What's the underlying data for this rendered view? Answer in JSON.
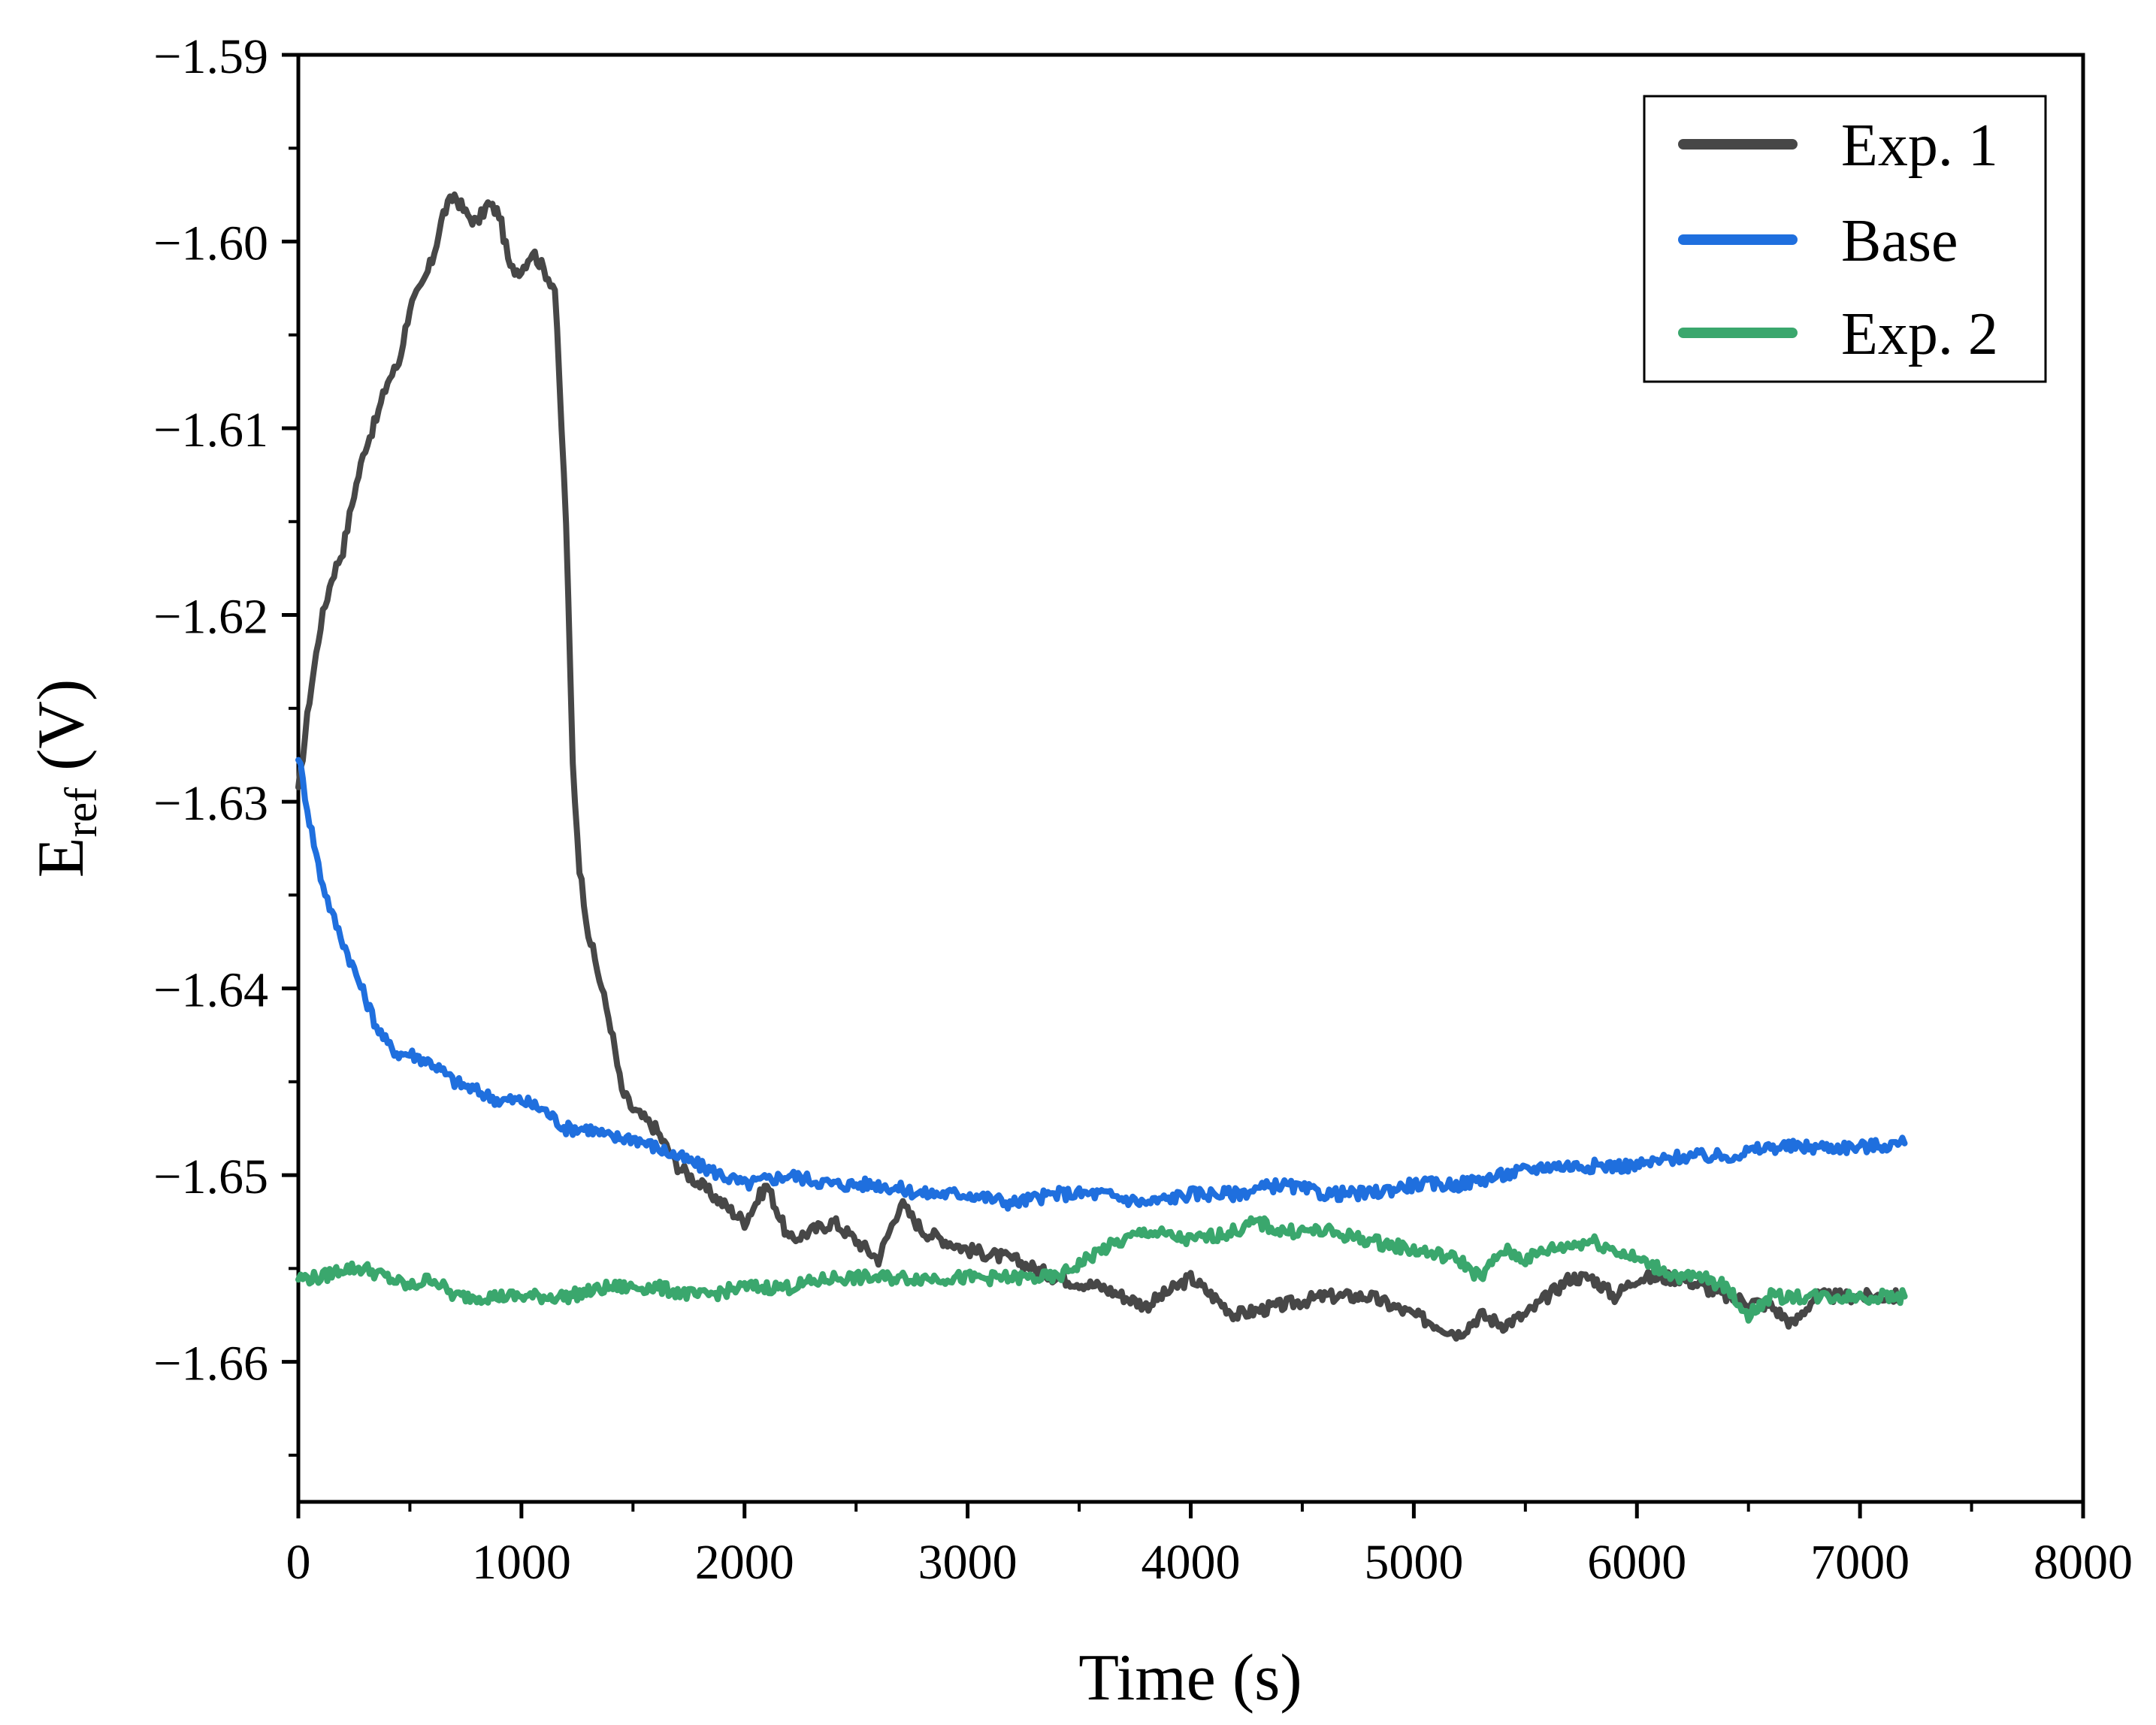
{
  "chart_data": {
    "type": "line",
    "title": "",
    "xlabel": "Time (s)",
    "ylabel_main": "E",
    "ylabel_sub": "ref",
    "ylabel_unit": " (V)",
    "xlim": [
      0,
      8000
    ],
    "ylim": [
      -1.6675,
      -1.59
    ],
    "x_ticks": [
      0,
      1000,
      2000,
      3000,
      4000,
      5000,
      6000,
      7000,
      8000
    ],
    "x_tick_labels": [
      "0",
      "1000",
      "2000",
      "3000",
      "4000",
      "5000",
      "6000",
      "7000",
      "8000"
    ],
    "y_ticks": [
      -1.59,
      -1.6,
      -1.61,
      -1.62,
      -1.63,
      -1.64,
      -1.65,
      -1.66
    ],
    "y_tick_labels": [
      "−1.59",
      "−1.60",
      "−1.61",
      "−1.62",
      "−1.63",
      "−1.64",
      "−1.65",
      "−1.66"
    ],
    "grid": false,
    "legend_position": "top-right",
    "series": [
      {
        "name": "Exp. 1",
        "color": "#474747",
        "x": [
          0,
          50,
          100,
          150,
          200,
          250,
          300,
          350,
          400,
          450,
          500,
          550,
          600,
          650,
          700,
          750,
          800,
          850,
          900,
          950,
          1000,
          1050,
          1100,
          1150,
          1200,
          1230,
          1260,
          1300,
          1350,
          1400,
          1450,
          1500,
          1600,
          1700,
          1800,
          1900,
          2000,
          2100,
          2200,
          2300,
          2400,
          2500,
          2600,
          2700,
          2800,
          2900,
          3000,
          3200,
          3400,
          3600,
          3800,
          4000,
          4200,
          4400,
          4600,
          4800,
          5000,
          5100,
          5200,
          5300,
          5400,
          5500,
          5600,
          5700,
          5800,
          5900,
          6000,
          6200,
          6400,
          6600,
          6700,
          6800,
          7000,
          7200
        ],
        "y": [
          -1.6295,
          -1.6245,
          -1.6205,
          -1.618,
          -1.6165,
          -1.6135,
          -1.611,
          -1.6095,
          -1.6075,
          -1.6065,
          -1.6035,
          -1.6025,
          -1.601,
          -1.5985,
          -1.5975,
          -1.5985,
          -1.599,
          -1.598,
          -1.5985,
          -1.6015,
          -1.6015,
          -1.6005,
          -1.6015,
          -1.6025,
          -1.615,
          -1.628,
          -1.6335,
          -1.637,
          -1.6395,
          -1.642,
          -1.6455,
          -1.6465,
          -1.6475,
          -1.6495,
          -1.6505,
          -1.6515,
          -1.6525,
          -1.6505,
          -1.6535,
          -1.653,
          -1.6525,
          -1.6535,
          -1.6545,
          -1.6515,
          -1.653,
          -1.6535,
          -1.654,
          -1.6545,
          -1.6555,
          -1.656,
          -1.657,
          -1.6555,
          -1.6575,
          -1.657,
          -1.6565,
          -1.6565,
          -1.6575,
          -1.658,
          -1.6585,
          -1.6575,
          -1.658,
          -1.6575,
          -1.6565,
          -1.6555,
          -1.6555,
          -1.6565,
          -1.6555,
          -1.6555,
          -1.6565,
          -1.657,
          -1.658,
          -1.6565,
          -1.6565,
          -1.6565
        ]
      },
      {
        "name": "Base",
        "color": "#1f6fde",
        "x": [
          0,
          50,
          100,
          150,
          200,
          250,
          300,
          350,
          400,
          450,
          500,
          600,
          700,
          800,
          900,
          1000,
          1100,
          1200,
          1300,
          1400,
          1500,
          1600,
          1700,
          1800,
          1900,
          2000,
          2200,
          2400,
          2600,
          2800,
          3000,
          3200,
          3400,
          3600,
          3800,
          4000,
          4200,
          4400,
          4600,
          4800,
          5000,
          5200,
          5400,
          5600,
          5800,
          6000,
          6200,
          6400,
          6600,
          6800,
          7000,
          7200
        ],
        "y": [
          -1.6275,
          -1.631,
          -1.634,
          -1.636,
          -1.6375,
          -1.639,
          -1.6405,
          -1.642,
          -1.643,
          -1.6435,
          -1.6435,
          -1.644,
          -1.645,
          -1.6455,
          -1.646,
          -1.646,
          -1.6465,
          -1.6475,
          -1.6475,
          -1.648,
          -1.648,
          -1.6485,
          -1.649,
          -1.6495,
          -1.65,
          -1.6505,
          -1.65,
          -1.6505,
          -1.6505,
          -1.651,
          -1.651,
          -1.6515,
          -1.651,
          -1.651,
          -1.6515,
          -1.651,
          -1.651,
          -1.6505,
          -1.651,
          -1.651,
          -1.6505,
          -1.6505,
          -1.65,
          -1.6495,
          -1.6495,
          -1.6495,
          -1.649,
          -1.649,
          -1.6485,
          -1.6485,
          -1.6485,
          -1.6483
        ]
      },
      {
        "name": "Exp. 2",
        "color": "#3aa76d",
        "x": [
          0,
          100,
          200,
          300,
          400,
          500,
          600,
          700,
          800,
          900,
          1000,
          1200,
          1400,
          1600,
          1800,
          2000,
          2200,
          2400,
          2600,
          2800,
          3000,
          3200,
          3400,
          3600,
          3700,
          3800,
          4000,
          4200,
          4300,
          4400,
          4500,
          4600,
          4800,
          5000,
          5200,
          5300,
          5400,
          5500,
          5600,
          5800,
          5900,
          6000,
          6200,
          6300,
          6400,
          6500,
          6600,
          6700,
          6800,
          7000,
          7200
        ],
        "y": [
          -1.6555,
          -1.6555,
          -1.655,
          -1.655,
          -1.6555,
          -1.656,
          -1.6555,
          -1.6565,
          -1.6565,
          -1.6565,
          -1.6565,
          -1.6565,
          -1.656,
          -1.656,
          -1.6565,
          -1.656,
          -1.656,
          -1.6555,
          -1.6555,
          -1.6555,
          -1.6555,
          -1.6555,
          -1.6555,
          -1.654,
          -1.6535,
          -1.653,
          -1.6535,
          -1.653,
          -1.6525,
          -1.653,
          -1.653,
          -1.653,
          -1.6535,
          -1.654,
          -1.6545,
          -1.6555,
          -1.654,
          -1.6545,
          -1.654,
          -1.6535,
          -1.654,
          -1.6545,
          -1.6555,
          -1.6555,
          -1.656,
          -1.6575,
          -1.6565,
          -1.6565,
          -1.6565,
          -1.6565,
          -1.6565
        ]
      }
    ]
  }
}
